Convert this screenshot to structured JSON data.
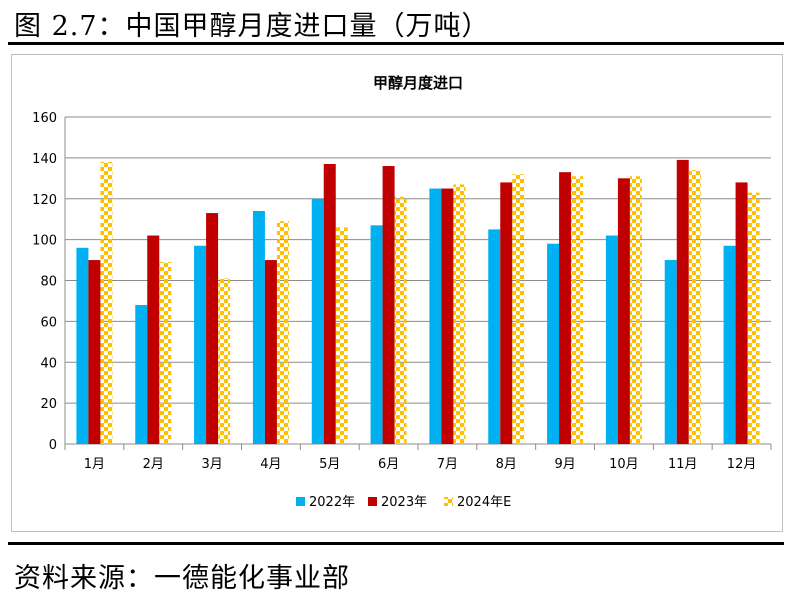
{
  "header": {
    "figure_title": "图 2.7：中国甲醇月度进口量（万吨）"
  },
  "footer": {
    "source": "资料来源：一德能化事业部"
  },
  "colors": {
    "s2022": "#00B0F0",
    "s2023": "#C00000",
    "s2024": "#FFC000"
  },
  "chart_data": {
    "type": "bar",
    "title": "甲醇月度进口",
    "xlabel": "",
    "ylabel": "",
    "ylim": [
      0,
      160
    ],
    "yticks": [
      "0",
      "20",
      "40",
      "60",
      "80",
      "100",
      "120",
      "140",
      "160"
    ],
    "categories": [
      "1月",
      "2月",
      "3月",
      "4月",
      "5月",
      "6月",
      "7月",
      "8月",
      "9月",
      "10月",
      "11月",
      "12月"
    ],
    "legend_position": "bottom",
    "series": [
      {
        "name": "2022年",
        "color": "#00B0F0",
        "pattern": "solid",
        "values": [
          96,
          68,
          97,
          114,
          120,
          107,
          125,
          105,
          98,
          102,
          90,
          97
        ]
      },
      {
        "name": "2023年",
        "color": "#C00000",
        "pattern": "solid",
        "values": [
          90,
          102,
          113,
          90,
          137,
          136,
          125,
          128,
          133,
          130,
          139,
          128
        ]
      },
      {
        "name": "2024年E",
        "color": "#FFC000",
        "pattern": "checker",
        "values": [
          138,
          89,
          81,
          109,
          106,
          121,
          127,
          132,
          131,
          131,
          134,
          123
        ]
      }
    ]
  }
}
